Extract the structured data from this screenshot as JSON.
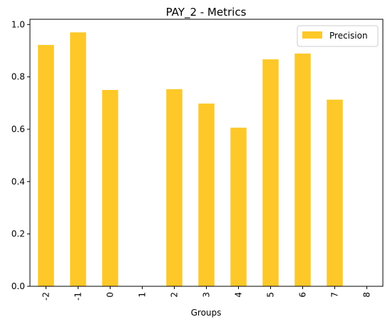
{
  "chart_data": {
    "type": "bar",
    "title": "PAY_2 - Metrics",
    "xlabel": "Groups",
    "ylabel": "",
    "categories": [
      "-2",
      "-1",
      "0",
      "1",
      "2",
      "3",
      "4",
      "5",
      "6",
      "7",
      "8"
    ],
    "series": [
      {
        "name": "Precision",
        "color": "#fdc828",
        "values": [
          0.922,
          0.97,
          0.75,
          0,
          0.753,
          0.698,
          0.606,
          0.867,
          0.889,
          0.713,
          0
        ]
      }
    ],
    "ylim": [
      0,
      1.02
    ],
    "yticks": [
      "0.0",
      "0.2",
      "0.4",
      "0.6",
      "0.8",
      "1.0"
    ],
    "grid": false,
    "legend_position": "top-right"
  }
}
